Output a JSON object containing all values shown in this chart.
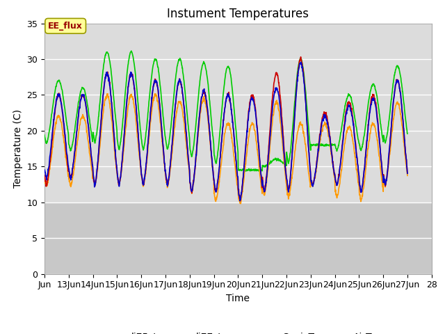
{
  "title": "Instument Temperatures",
  "xlabel": "Time",
  "ylabel": "Temperature (C)",
  "ylim": [
    0,
    35
  ],
  "yticks": [
    0,
    5,
    10,
    15,
    20,
    25,
    30,
    35
  ],
  "colors": {
    "li75_t": "#cc0000",
    "li77_temp": "#0000cc",
    "SonicT": "#00cc00",
    "AirT": "#ff9900"
  },
  "annotation_text": "EE_flux",
  "annotation_color": "#990000",
  "annotation_bg": "#ffff99",
  "annotation_border": "#999900",
  "plot_bg_upper": "#dcdcdc",
  "plot_bg_lower": "#c8c8c8",
  "grid_color": "#ffffff",
  "title_fontsize": 12,
  "axis_fontsize": 10,
  "tick_fontsize": 9,
  "legend_fontsize": 10,
  "line_width": 1.2,
  "x_start_day": 12,
  "x_end_day": 28,
  "x_tick_days": [
    12,
    13,
    14,
    15,
    16,
    17,
    18,
    19,
    20,
    21,
    22,
    23,
    24,
    25,
    26,
    27,
    28
  ],
  "x_tick_labels": [
    "Jun",
    "13Jun",
    "14Jun",
    "15Jun",
    "16Jun",
    "17Jun",
    "18Jun",
    "19Jun",
    "20Jun",
    "21Jun",
    "22Jun",
    "23Jun",
    "24Jun",
    "25Jun",
    "26Jun",
    "27Jun",
    "28"
  ]
}
